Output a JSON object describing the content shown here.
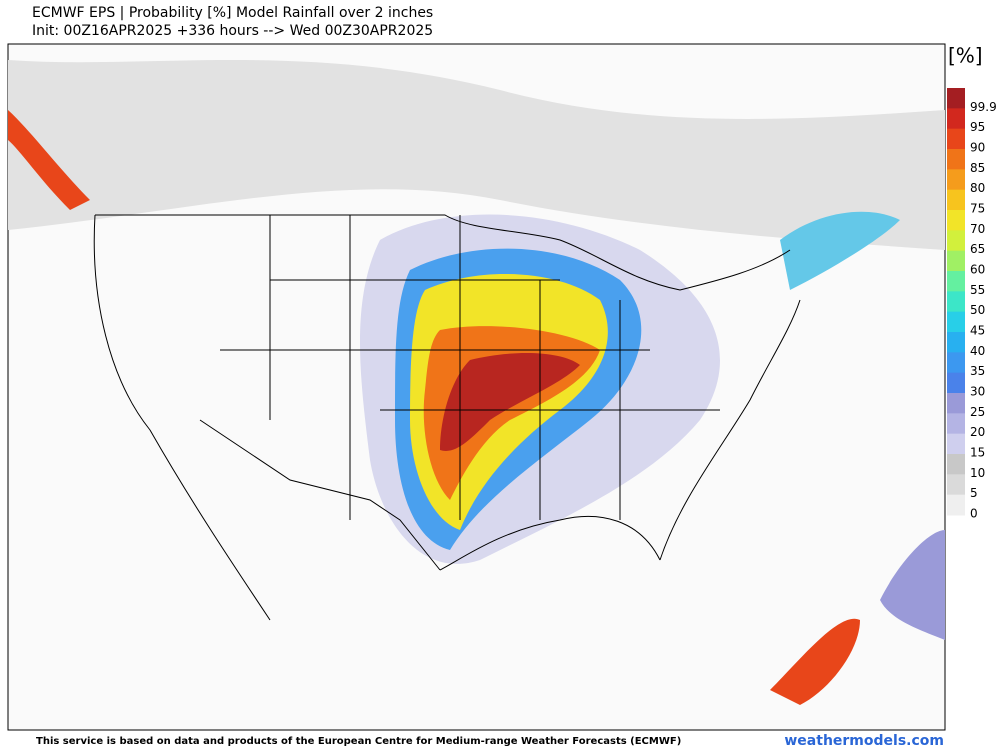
{
  "header": {
    "title": "ECMWF EPS | Probability [%] Model Rainfall over 2 inches",
    "subtitle": "Init: 00Z16APR2025 +336 hours --> Wed 00Z30APR2025"
  },
  "legend": {
    "unit": "[%]",
    "levels": [
      99.9,
      95,
      90,
      85,
      80,
      75,
      70,
      65,
      60,
      55,
      50,
      45,
      40,
      35,
      30,
      25,
      20,
      15,
      10,
      5,
      0
    ],
    "colors": [
      "#a41e22",
      "#d2281e",
      "#e8461a",
      "#f07418",
      "#f59c1c",
      "#f7c41e",
      "#f2e428",
      "#d2f03c",
      "#a0f064",
      "#64f0a0",
      "#3ce6c8",
      "#28cfe8",
      "#28b0f0",
      "#3c98f0",
      "#4a82ea",
      "#9a9ad8",
      "#b4b4e4",
      "#cfcfee",
      "#c8c8c8",
      "#dadada",
      "#efefef"
    ]
  },
  "footer": {
    "credit": "This service is based on data and products of the European Centre for Medium-range Weather Forecasts (ECMWF)",
    "site": "weathermodels.com"
  }
}
